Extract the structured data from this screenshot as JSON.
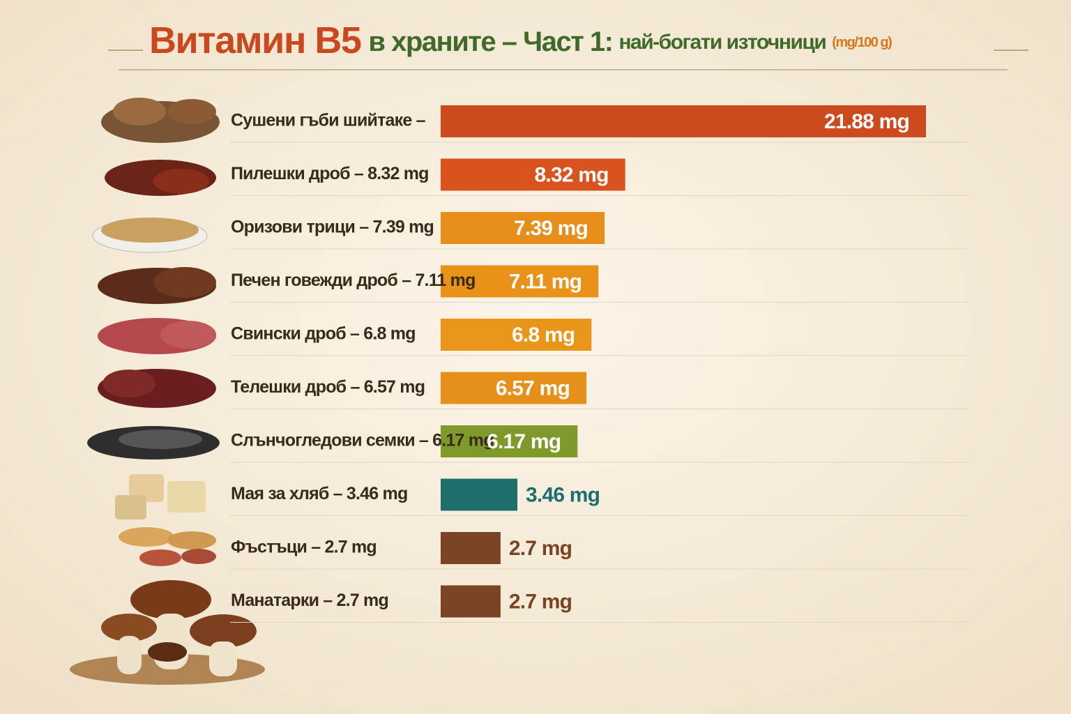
{
  "chart_data": {
    "type": "bar",
    "title": "Витамин B5",
    "subtitle": "в храните – Част 1:",
    "subtitle2": "най-богати източници",
    "unit_note": "(mg/100 g)",
    "categories": [
      "Сушени гъби шийтаке –",
      "Пилешки дроб – 8.32 mg",
      "Оризови трици – 7.39 mg",
      "Печен говежди дроб – 7.11 mg",
      "Свински дроб – 6.8 mg",
      "Телешки дроб – 6.57 mg",
      "Слънчогледови семки – 6.17 mg",
      "Мая за хляб – 3.46 mg",
      "Фъстъци – 2.7 mg",
      "Манатарки – 2.7 mg"
    ],
    "values": [
      21.88,
      8.32,
      7.39,
      7.11,
      6.8,
      6.57,
      6.17,
      3.46,
      2.7,
      2.7
    ],
    "value_labels": [
      "21.88 mg",
      "8.32 mg",
      "7.39 mg",
      "7.11 mg",
      "6.8 mg",
      "6.57 mg",
      "6.17 mg",
      "3.46 mg",
      "2.7 mg",
      "2.7 mg"
    ],
    "colors": [
      "#cc4a1e",
      "#d9531f",
      "#e58e1a",
      "#e8921a",
      "#e8951a",
      "#e6901c",
      "#7f9a2a",
      "#1f6e6e",
      "#7a4424",
      "#7a4424"
    ]
  }
}
